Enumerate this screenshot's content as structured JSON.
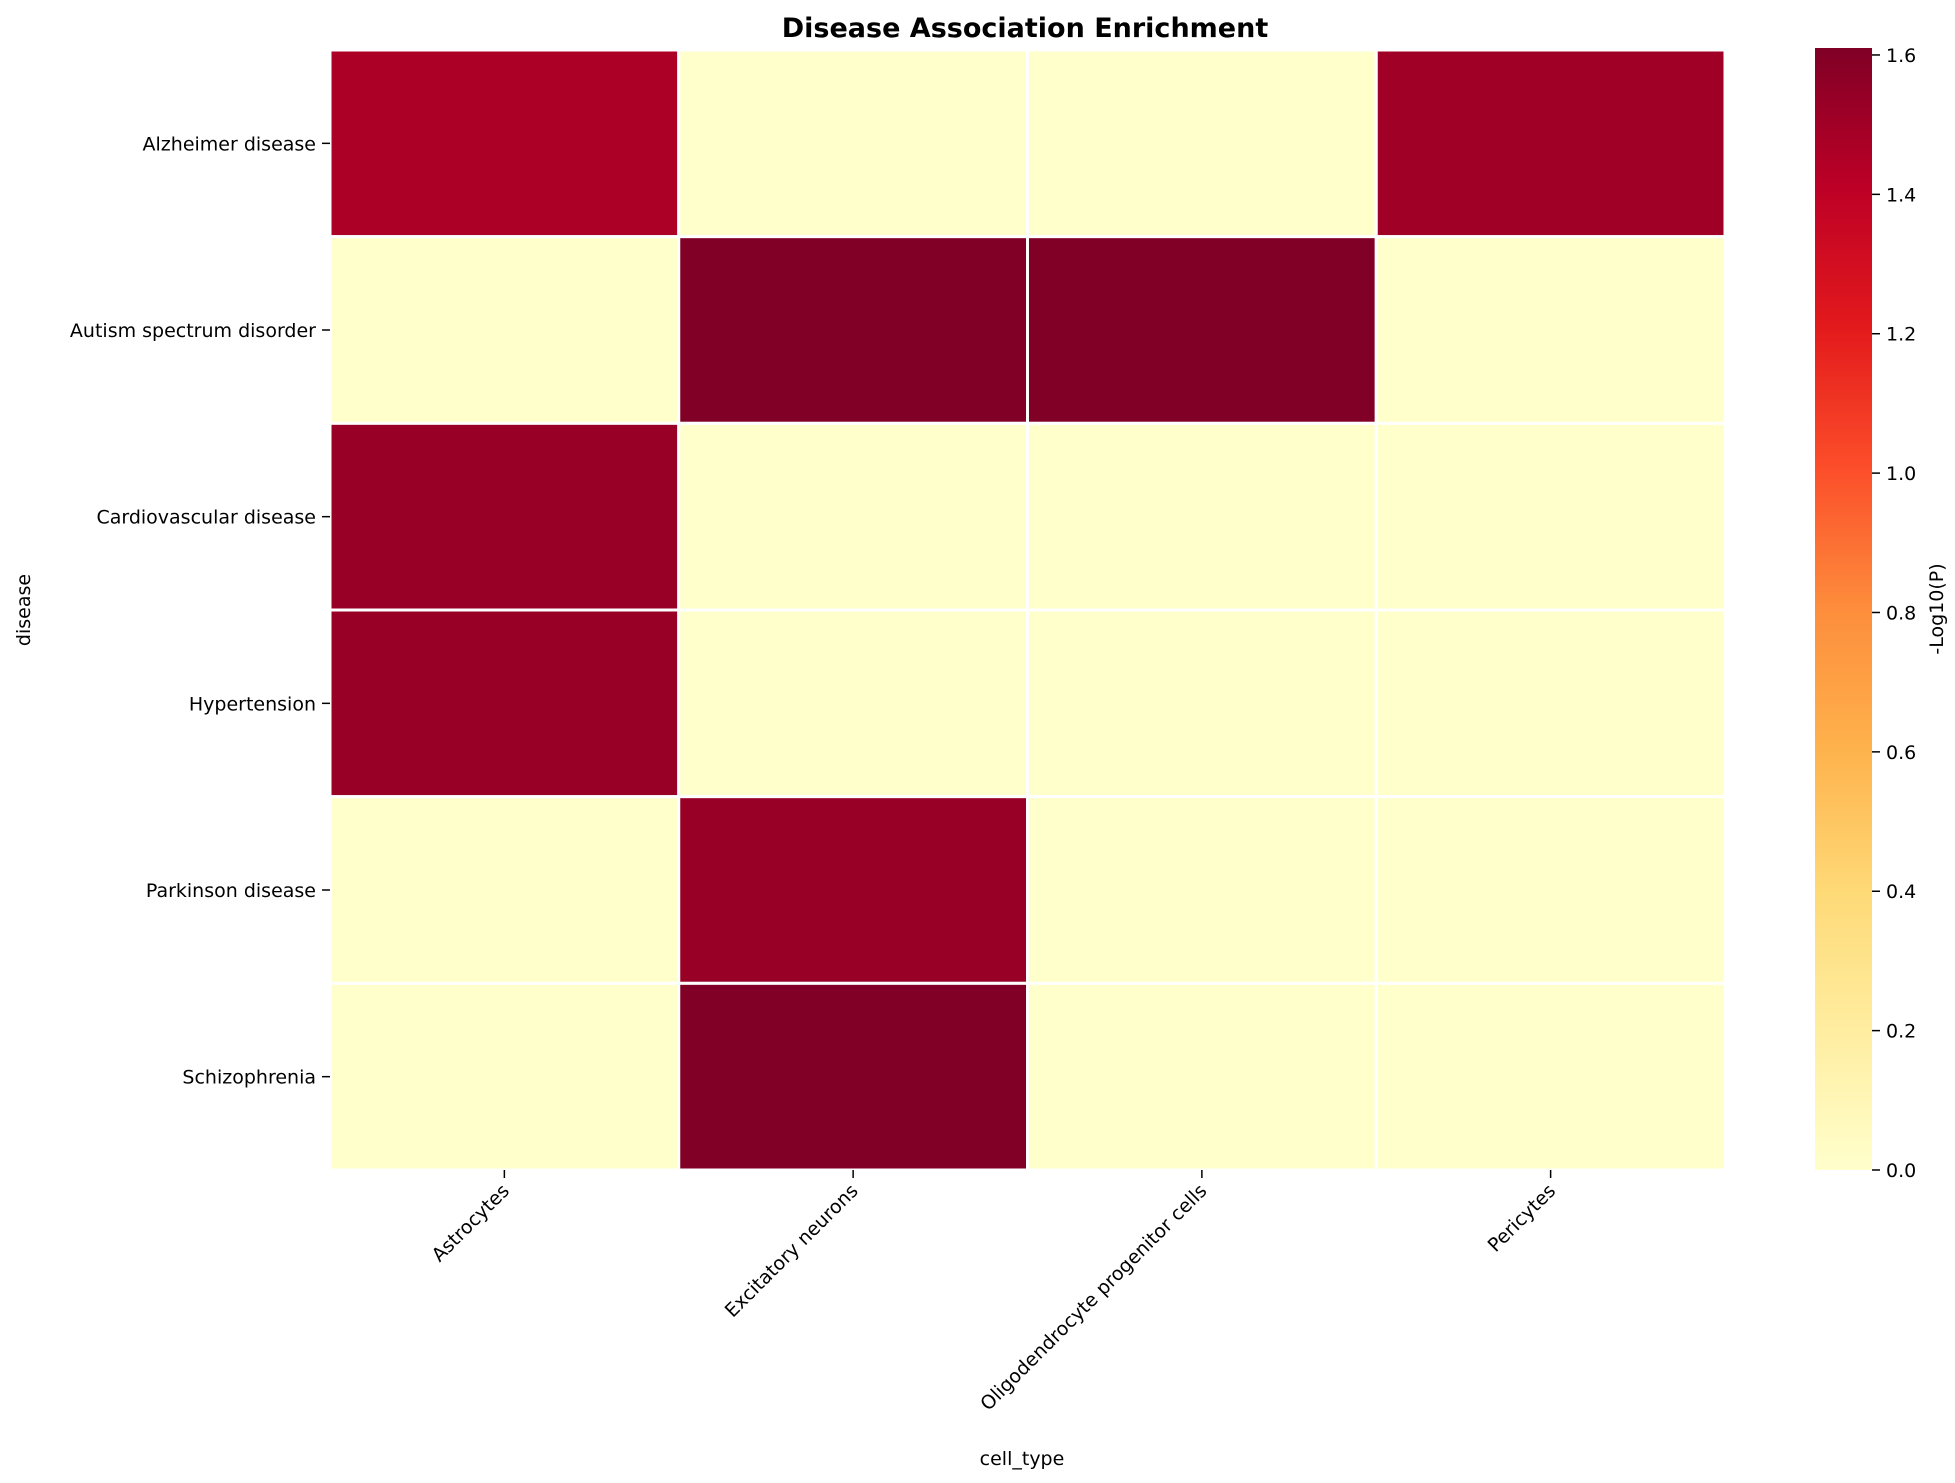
{
  "chart_data": {
    "type": "heatmap",
    "title": "Disease Association Enrichment",
    "xlabel": "cell_type",
    "ylabel": "disease",
    "x_categories": [
      "Astrocytes",
      "Excitatory neurons",
      "Oligodendrocyte progenitor cells",
      "Pericytes"
    ],
    "y_categories": [
      "Alzheimer disease",
      "Autism spectrum disorder",
      "Cardiovascular disease",
      "Hypertension",
      "Parkinson disease",
      "Schizophrenia"
    ],
    "values": [
      [
        1.46,
        0.0,
        0.0,
        1.5
      ],
      [
        0.0,
        1.61,
        1.61,
        0.0
      ],
      [
        1.53,
        0.0,
        0.0,
        0.0
      ],
      [
        1.53,
        0.0,
        0.0,
        0.0
      ],
      [
        0.0,
        1.53,
        0.0,
        0.0
      ],
      [
        0.0,
        1.61,
        0.0,
        0.0
      ]
    ],
    "colorbar": {
      "label": "-Log10(P)",
      "range": [
        0.0,
        1.61
      ],
      "ticks": [
        "0.0",
        "0.2",
        "0.4",
        "0.6",
        "0.8",
        "1.0",
        "1.2",
        "1.4",
        "1.6"
      ],
      "colormap": "YlOrRd",
      "colors": [
        "#ffffcc",
        "#ffeda0",
        "#fed976",
        "#feb24c",
        "#fd8d3c",
        "#fc4e2a",
        "#e31a1c",
        "#bd0026",
        "#800026"
      ]
    },
    "cell_border_color": "#ffffff"
  }
}
